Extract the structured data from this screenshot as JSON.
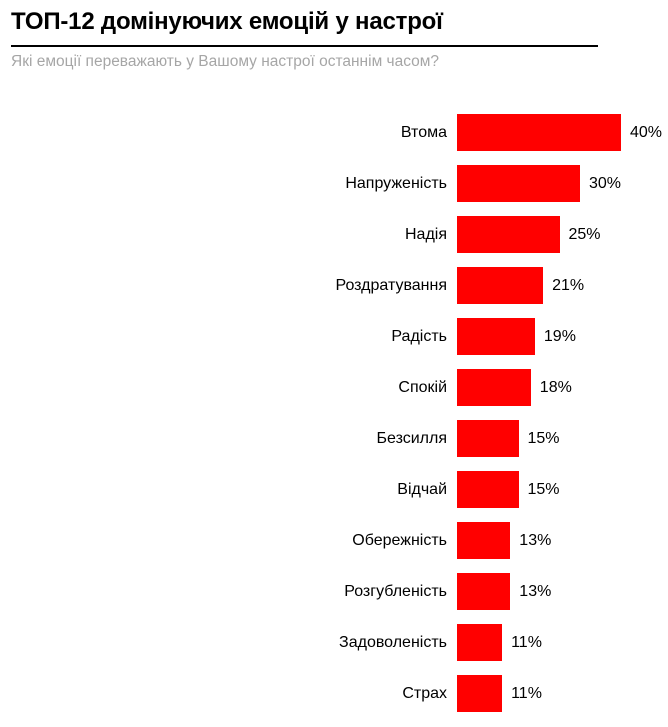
{
  "header": {
    "title": "ТОП-12 домінуючих емоцій у настрої",
    "subtitle": "Які емоції переважають у Вашому настрої останнім часом?"
  },
  "chart_data": {
    "type": "bar",
    "orientation": "horizontal",
    "title": "ТОП-12 домінуючих емоцій у настрої",
    "subtitle": "Які емоції переважають у Вашому настрої останнім часом?",
    "categories": [
      "Втома",
      "Напруженість",
      "Надія",
      "Роздратування",
      "Радість",
      "Спокій",
      "Безсилля",
      "Відчай",
      "Обережність",
      "Розгубленість",
      "Задоволеність",
      "Страх"
    ],
    "values": [
      40,
      30,
      25,
      21,
      19,
      18,
      15,
      15,
      13,
      13,
      11,
      11
    ],
    "value_suffix": "%",
    "bar_color": "#ff0000",
    "xlim": [
      0,
      40
    ],
    "grid": false,
    "legend": false,
    "data_labels": "outside-end",
    "sort": "descending"
  }
}
